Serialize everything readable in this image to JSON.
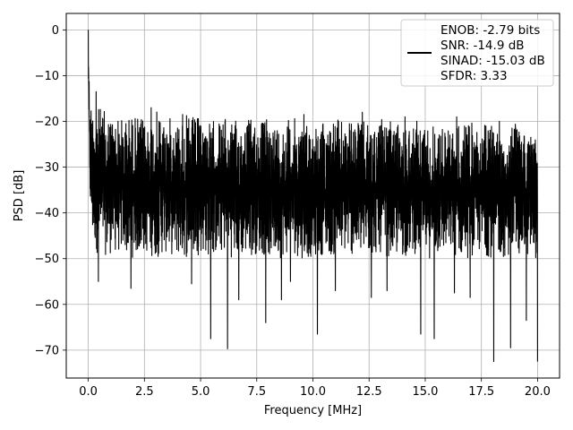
{
  "chart_data": {
    "type": "line",
    "title": "",
    "xlabel": "Frequency [MHz]",
    "ylabel": "PSD [dB]",
    "xlim": [
      -0.98,
      20.98
    ],
    "ylim": [
      -76.1,
      3.6
    ],
    "xticks": [
      0.0,
      2.5,
      5.0,
      7.5,
      10.0,
      12.5,
      15.0,
      17.5,
      20.0
    ],
    "xtick_labels": [
      "0.0",
      "2.5",
      "5.0",
      "7.5",
      "10.0",
      "12.5",
      "15.0",
      "17.5",
      "20.0"
    ],
    "yticks": [
      0,
      -10,
      -20,
      -30,
      -40,
      -50,
      -60,
      -70
    ],
    "ytick_labels": [
      "0",
      "−10",
      "−20",
      "−30",
      "−40",
      "−50",
      "−60",
      "−70"
    ],
    "grid": true,
    "legend_position": "top-right",
    "legend": [
      "ENOB: -2.79 bits",
      "SNR: -14.9 dB",
      "SINAD: -15.03 dB",
      "SFDR: 3.33"
    ],
    "series": [
      {
        "color": "#000000",
        "description": "dense noisy PSD spectrum; peak 0 dB at DC, noise floor roughly -20 to -50 dB across 0-20 MHz",
        "x": [
          0.0,
          0.02,
          0.04,
          0.06,
          0.08,
          0.1,
          0.15,
          0.2,
          0.3,
          0.4,
          0.5,
          0.6,
          0.7,
          0.8,
          1.0,
          1.5,
          2.0,
          2.5,
          3.0,
          3.5,
          4.0,
          4.5,
          5.0,
          5.5,
          6.0,
          6.5,
          7.0,
          7.5,
          8.0,
          8.5,
          9.0,
          9.5,
          10.0,
          10.5,
          11.0,
          11.5,
          12.0,
          12.5,
          13.0,
          13.5,
          14.0,
          14.5,
          15.0,
          15.5,
          16.0,
          16.5,
          17.0,
          17.5,
          18.0,
          18.5,
          19.0,
          19.5,
          20.0
        ],
        "upper": [
          0.0,
          -5.0,
          -9.5,
          -12.0,
          -14.0,
          -15.5,
          -14.5,
          -16.0,
          -15.0,
          -16.0,
          -17.0,
          -16.5,
          -17.5,
          -17.0,
          -18.0,
          -19.0,
          -18.0,
          -19.5,
          -17.5,
          -19.0,
          -19.0,
          -18.5,
          -19.0,
          -19.5,
          -19.0,
          -20.0,
          -18.5,
          -19.5,
          -19.0,
          -20.0,
          -19.0,
          -19.5,
          -20.0,
          -19.5,
          -19.0,
          -20.0,
          -19.5,
          -20.5,
          -19.5,
          -20.0,
          -20.5,
          -19.5,
          -20.0,
          -20.5,
          -21.0,
          -20.5,
          -20.0,
          -20.5,
          -20.0,
          -21.0,
          -20.5,
          -21.0,
          -23.0
        ],
        "lower": [
          -10.0,
          -20.0,
          -27.0,
          -33.0,
          -38.0,
          -42.0,
          -45.0,
          -47.0,
          -48.0,
          -49.0,
          -48.0,
          -49.0,
          -48.0,
          -50.0,
          -49.0,
          -49.0,
          -50.0,
          -49.0,
          -50.0,
          -49.0,
          -50.0,
          -50.0,
          -49.0,
          -50.0,
          -49.0,
          -50.0,
          -50.0,
          -49.0,
          -50.0,
          -50.0,
          -49.0,
          -50.0,
          -50.0,
          -49.0,
          -50.0,
          -49.0,
          -50.0,
          -50.0,
          -49.0,
          -50.0,
          -50.0,
          -49.0,
          -50.0,
          -50.0,
          -49.0,
          -50.0,
          -50.0,
          -49.0,
          -50.0,
          -50.0,
          -49.0,
          -50.0,
          -50.0
        ],
        "deep_dips": [
          {
            "x": 0.45,
            "y": -55.0
          },
          {
            "x": 1.9,
            "y": -56.5
          },
          {
            "x": 4.6,
            "y": -55.5
          },
          {
            "x": 5.45,
            "y": -67.5
          },
          {
            "x": 6.2,
            "y": -69.7
          },
          {
            "x": 6.7,
            "y": -59.0
          },
          {
            "x": 7.9,
            "y": -64.0
          },
          {
            "x": 8.6,
            "y": -59.0
          },
          {
            "x": 9.0,
            "y": -55.0
          },
          {
            "x": 10.2,
            "y": -66.5
          },
          {
            "x": 11.0,
            "y": -57.0
          },
          {
            "x": 12.6,
            "y": -58.5
          },
          {
            "x": 13.3,
            "y": -57.0
          },
          {
            "x": 14.8,
            "y": -66.5
          },
          {
            "x": 15.4,
            "y": -67.5
          },
          {
            "x": 16.3,
            "y": -57.5
          },
          {
            "x": 17.0,
            "y": -58.5
          },
          {
            "x": 18.05,
            "y": -72.5
          },
          {
            "x": 18.8,
            "y": -69.5
          },
          {
            "x": 19.5,
            "y": -63.5
          },
          {
            "x": 20.0,
            "y": -72.5
          }
        ],
        "spikes": [
          {
            "x": 0.35,
            "y": -13.5
          },
          {
            "x": 2.8,
            "y": -17.0
          },
          {
            "x": 4.2,
            "y": -18.5
          },
          {
            "x": 9.6,
            "y": -18.5
          },
          {
            "x": 12.2,
            "y": -18.0
          },
          {
            "x": 14.1,
            "y": -19.0
          },
          {
            "x": 16.4,
            "y": -19.0
          },
          {
            "x": 18.3,
            "y": -20.0
          }
        ]
      }
    ]
  }
}
